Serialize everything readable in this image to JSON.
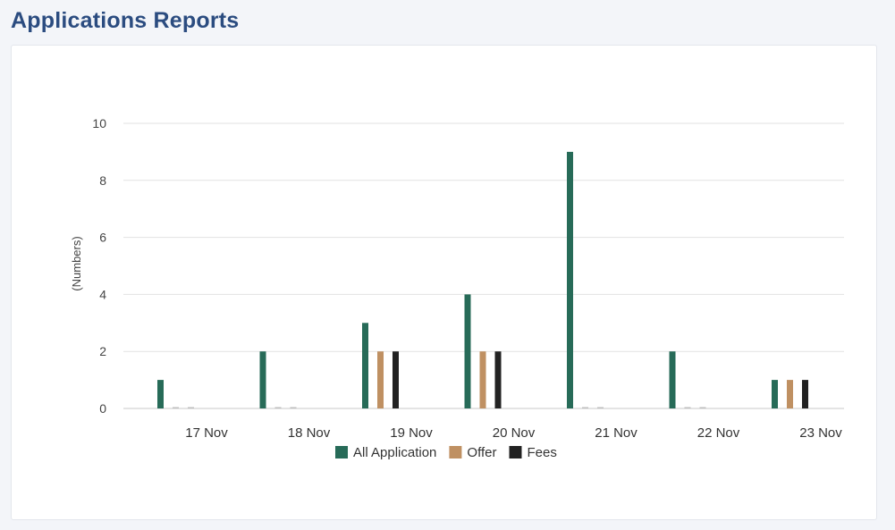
{
  "page": {
    "title": "Applications Reports"
  },
  "chart_data": {
    "type": "bar",
    "categories": [
      "17 Nov",
      "18 Nov",
      "19 Nov",
      "20 Nov",
      "21 Nov",
      "22 Nov",
      "23 Nov"
    ],
    "series": [
      {
        "name": "All Application",
        "color": "#276b58",
        "values": [
          1,
          2,
          3,
          4,
          9,
          2,
          1
        ]
      },
      {
        "name": "Offer",
        "color": "#bf9062",
        "values": [
          0,
          0,
          2,
          2,
          0,
          0,
          1
        ]
      },
      {
        "name": "Fees",
        "color": "#222222",
        "values": [
          0,
          0,
          2,
          2,
          0,
          0,
          1
        ]
      }
    ],
    "ylabel": "(Numbers)",
    "ylim": [
      0,
      10
    ],
    "yticks": [
      0,
      2,
      4,
      6,
      8,
      10
    ],
    "grid": true,
    "legend": "bottom-center"
  }
}
